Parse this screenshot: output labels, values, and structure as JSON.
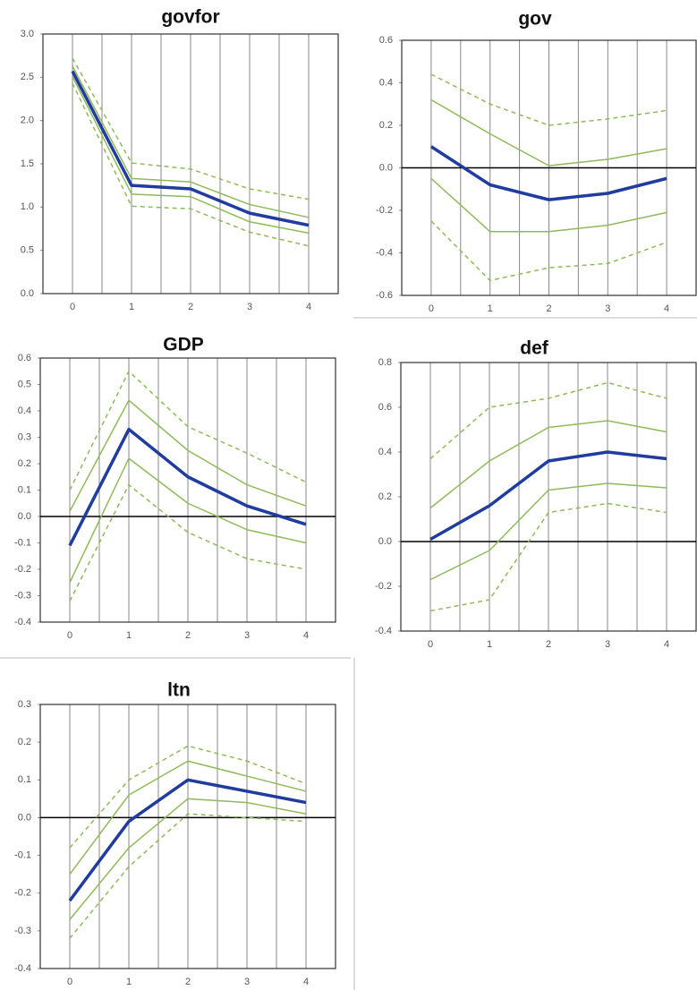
{
  "chart_data": [
    {
      "type": "line",
      "title": "govfor",
      "x": [
        0,
        1,
        2,
        3,
        4
      ],
      "xlim": [
        -0.5,
        4.5
      ],
      "xticks": [
        0,
        1,
        2,
        3,
        4
      ],
      "ylim": [
        0,
        3
      ],
      "yticks": [
        {
          "value": 0,
          "label": "0.0"
        },
        0.5,
        {
          "value": 1,
          "label": "1.0"
        },
        1.5,
        {
          "value": 2,
          "label": "2.0"
        },
        2.5,
        {
          "value": 3,
          "label": "3.0"
        }
      ],
      "xgrid": true,
      "zero_line": false,
      "series": [
        {
          "color": "#8fba5a",
          "dashed": true,
          "line_width": 1.5,
          "values": [
            2.72,
            1.51,
            1.44,
            1.21,
            1.09
          ]
        },
        {
          "color": "#8fba5a",
          "dashed": false,
          "line_width": 1.5,
          "values": [
            2.63,
            1.33,
            1.29,
            1.03,
            0.88
          ]
        },
        {
          "color": "#8fba5a",
          "dashed": false,
          "line_width": 1.5,
          "values": [
            2.51,
            1.15,
            1.12,
            0.83,
            0.7
          ]
        },
        {
          "color": "#8fba5a",
          "dashed": true,
          "line_width": 1.5,
          "values": [
            2.43,
            1.01,
            0.98,
            0.71,
            0.55
          ]
        },
        {
          "color": "#1f3c9e",
          "dashed": false,
          "line_width": 3.5,
          "values": [
            2.57,
            1.25,
            1.21,
            0.93,
            0.79
          ]
        }
      ]
    },
    {
      "type": "line",
      "title": "gov",
      "x": [
        0,
        1,
        2,
        3,
        4
      ],
      "xlim": [
        -0.5,
        4.5
      ],
      "xticks": [
        0,
        1,
        2,
        3,
        4
      ],
      "ylim": [
        -0.6,
        0.6
      ],
      "yticks": [
        -0.6,
        -0.4,
        -0.2,
        {
          "value": 0,
          "label": "0.0"
        },
        0.2,
        0.4,
        0.6
      ],
      "xgrid": true,
      "zero_line": true,
      "series": [
        {
          "color": "#8fba5a",
          "dashed": true,
          "line_width": 1.5,
          "values": [
            0.44,
            0.3,
            0.2,
            0.23,
            0.27
          ]
        },
        {
          "color": "#8fba5a",
          "dashed": false,
          "line_width": 1.5,
          "values": [
            0.32,
            0.16,
            0.01,
            0.04,
            0.09
          ]
        },
        {
          "color": "#8fba5a",
          "dashed": false,
          "line_width": 1.5,
          "values": [
            -0.05,
            -0.3,
            -0.3,
            -0.27,
            -0.21
          ]
        },
        {
          "color": "#8fba5a",
          "dashed": true,
          "line_width": 1.5,
          "values": [
            -0.25,
            -0.53,
            -0.47,
            -0.45,
            -0.35
          ]
        },
        {
          "color": "#1f3c9e",
          "dashed": false,
          "line_width": 3.5,
          "values": [
            0.1,
            -0.08,
            -0.15,
            -0.12,
            -0.05
          ]
        }
      ]
    },
    {
      "type": "line",
      "title": "GDP",
      "x": [
        0,
        1,
        2,
        3,
        4
      ],
      "xlim": [
        -0.5,
        4.5
      ],
      "xticks": [
        0,
        1,
        2,
        3,
        4
      ],
      "ylim": [
        -0.4,
        0.6
      ],
      "yticks": [
        -0.4,
        -0.3,
        -0.2,
        -0.1,
        {
          "value": 0,
          "label": "0.0"
        },
        0.1,
        0.2,
        0.3,
        0.4,
        0.5,
        0.6
      ],
      "xgrid": true,
      "zero_line": true,
      "series": [
        {
          "color": "#8fba5a",
          "dashed": true,
          "line_width": 1.5,
          "values": [
            0.1,
            0.55,
            0.34,
            0.24,
            0.13
          ]
        },
        {
          "color": "#8fba5a",
          "dashed": false,
          "line_width": 1.5,
          "values": [
            0.02,
            0.44,
            0.25,
            0.12,
            0.04
          ]
        },
        {
          "color": "#8fba5a",
          "dashed": false,
          "line_width": 1.5,
          "values": [
            -0.25,
            0.22,
            0.05,
            -0.05,
            -0.1
          ]
        },
        {
          "color": "#8fba5a",
          "dashed": true,
          "line_width": 1.5,
          "values": [
            -0.32,
            0.12,
            -0.06,
            -0.16,
            -0.2
          ]
        },
        {
          "color": "#1f3c9e",
          "dashed": false,
          "line_width": 3.5,
          "values": [
            -0.11,
            0.33,
            0.15,
            0.04,
            -0.03
          ]
        }
      ]
    },
    {
      "type": "line",
      "title": "def",
      "x": [
        0,
        1,
        2,
        3,
        4
      ],
      "xlim": [
        -0.5,
        4.5
      ],
      "xticks": [
        0,
        1,
        2,
        3,
        4
      ],
      "ylim": [
        -0.4,
        0.8
      ],
      "yticks": [
        -0.4,
        -0.2,
        {
          "value": 0,
          "label": "0.0"
        },
        0.2,
        0.4,
        0.6,
        0.8
      ],
      "xgrid": true,
      "zero_line": true,
      "series": [
        {
          "color": "#8fba5a",
          "dashed": true,
          "line_width": 1.5,
          "values": [
            0.37,
            0.6,
            0.64,
            0.71,
            0.64
          ]
        },
        {
          "color": "#8fba5a",
          "dashed": false,
          "line_width": 1.5,
          "values": [
            0.15,
            0.36,
            0.51,
            0.54,
            0.49
          ]
        },
        {
          "color": "#8fba5a",
          "dashed": false,
          "line_width": 1.5,
          "values": [
            -0.17,
            -0.04,
            0.23,
            0.26,
            0.24
          ]
        },
        {
          "color": "#8fba5a",
          "dashed": true,
          "line_width": 1.5,
          "values": [
            -0.31,
            -0.26,
            0.13,
            0.17,
            0.13
          ]
        },
        {
          "color": "#1f3c9e",
          "dashed": false,
          "line_width": 3.5,
          "values": [
            0.01,
            0.16,
            0.36,
            0.4,
            0.37
          ]
        }
      ]
    },
    {
      "type": "line",
      "title": "ltn",
      "x": [
        0,
        1,
        2,
        3,
        4
      ],
      "xlim": [
        -0.5,
        4.5
      ],
      "xticks": [
        0,
        1,
        2,
        3,
        4
      ],
      "ylim": [
        -0.4,
        0.3
      ],
      "yticks": [
        -0.4,
        -0.3,
        -0.2,
        -0.1,
        {
          "value": 0,
          "label": "0.0"
        },
        0.1,
        0.2,
        0.3
      ],
      "xgrid": true,
      "zero_line": true,
      "series": [
        {
          "color": "#8fba5a",
          "dashed": true,
          "line_width": 1.5,
          "values": [
            -0.08,
            0.1,
            0.19,
            0.15,
            0.09
          ]
        },
        {
          "color": "#8fba5a",
          "dashed": false,
          "line_width": 1.5,
          "values": [
            -0.15,
            0.06,
            0.15,
            0.11,
            0.07
          ]
        },
        {
          "color": "#8fba5a",
          "dashed": false,
          "line_width": 1.5,
          "values": [
            -0.27,
            -0.08,
            0.05,
            0.04,
            0.01
          ]
        },
        {
          "color": "#8fba5a",
          "dashed": true,
          "line_width": 1.5,
          "values": [
            -0.32,
            -0.13,
            0.01,
            0.0,
            -0.01
          ]
        },
        {
          "color": "#1f3c9e",
          "dashed": false,
          "line_width": 3.5,
          "values": [
            -0.22,
            -0.01,
            0.1,
            0.07,
            0.04
          ]
        }
      ]
    }
  ]
}
